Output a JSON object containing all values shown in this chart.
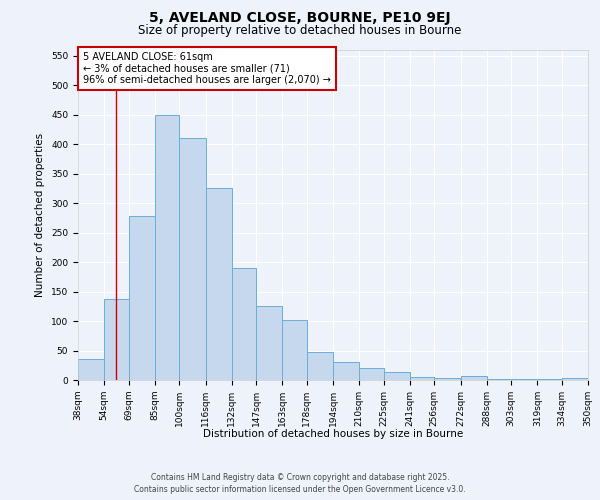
{
  "title": "5, AVELAND CLOSE, BOURNE, PE10 9EJ",
  "subtitle": "Size of property relative to detached houses in Bourne",
  "xlabel": "Distribution of detached houses by size in Bourne",
  "ylabel": "Number of detached properties",
  "bar_color": "#c5d8ee",
  "bar_edge_color": "#6baed6",
  "vline_color": "#cc0000",
  "vline_x": 61,
  "bins": [
    38,
    54,
    69,
    85,
    100,
    116,
    132,
    147,
    163,
    178,
    194,
    210,
    225,
    241,
    256,
    272,
    288,
    303,
    319,
    334,
    350
  ],
  "bin_labels": [
    "38sqm",
    "54sqm",
    "69sqm",
    "85sqm",
    "100sqm",
    "116sqm",
    "132sqm",
    "147sqm",
    "163sqm",
    "178sqm",
    "194sqm",
    "210sqm",
    "225sqm",
    "241sqm",
    "256sqm",
    "272sqm",
    "288sqm",
    "303sqm",
    "319sqm",
    "334sqm",
    "350sqm"
  ],
  "counts": [
    35,
    138,
    278,
    450,
    410,
    325,
    190,
    125,
    102,
    47,
    30,
    20,
    13,
    5,
    3,
    6,
    2,
    2,
    2,
    3
  ],
  "ylim": [
    0,
    560
  ],
  "yticks": [
    0,
    50,
    100,
    150,
    200,
    250,
    300,
    350,
    400,
    450,
    500,
    550
  ],
  "annotation_text": "5 AVELAND CLOSE: 61sqm\n← 3% of detached houses are smaller (71)\n96% of semi-detached houses are larger (2,070) →",
  "annotation_box_color": "#ffffff",
  "annotation_box_edge": "#cc0000",
  "footer_line1": "Contains HM Land Registry data © Crown copyright and database right 2025.",
  "footer_line2": "Contains public sector information licensed under the Open Government Licence v3.0.",
  "background_color": "#eef2fa",
  "grid_color": "#ffffff",
  "title_fontsize": 10,
  "subtitle_fontsize": 8.5,
  "axis_label_fontsize": 7.5,
  "tick_fontsize": 6.5,
  "annotation_fontsize": 7,
  "footer_fontsize": 5.5
}
